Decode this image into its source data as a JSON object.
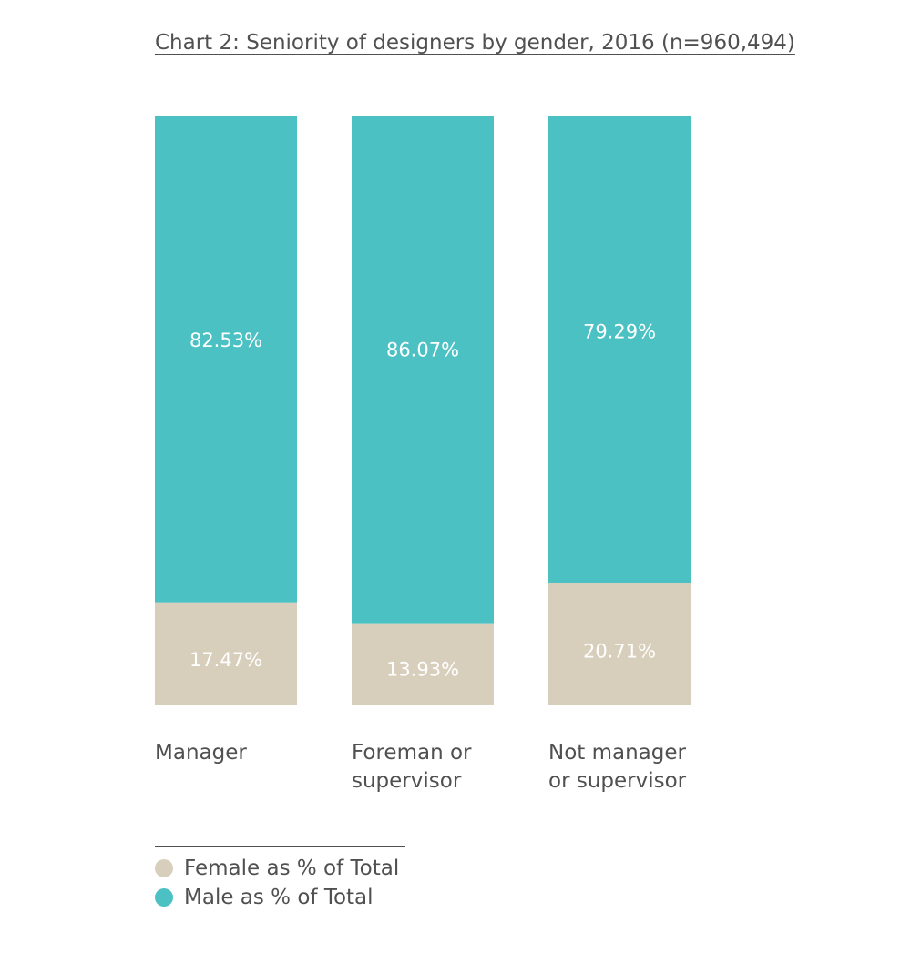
{
  "chart_data": {
    "type": "bar",
    "stacked": true,
    "title": "Chart 2: Seniority of designers by gender, 2016 (n=960,494)",
    "categories": [
      [
        "Manager"
      ],
      [
        "Foreman or",
        "supervisor"
      ],
      [
        "Not manager",
        "or supervisor"
      ]
    ],
    "series": [
      {
        "name": "Female as % of Total",
        "color": "#d8cebc",
        "values": [
          17.47,
          13.93,
          20.71
        ],
        "labels": [
          "17.47%",
          "13.93%",
          "20.71%"
        ]
      },
      {
        "name": "Male as % of Total",
        "color": "#4bc1c3",
        "values": [
          82.53,
          86.07,
          79.29
        ],
        "labels": [
          "82.53%",
          "86.07%",
          "79.29%"
        ]
      }
    ],
    "ylim": [
      0,
      100
    ],
    "grid": false,
    "legend": "bottom-left"
  }
}
